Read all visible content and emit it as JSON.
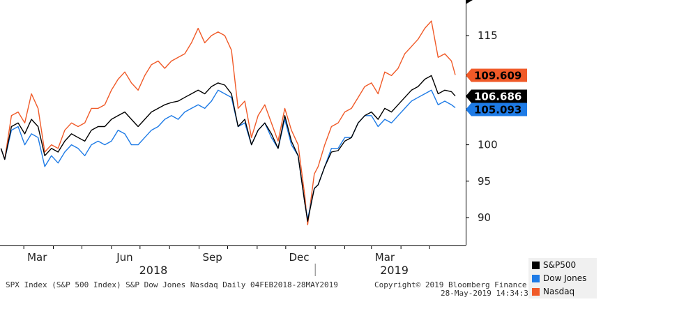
{
  "chart_data": {
    "type": "line",
    "y_ticks": [
      90,
      95,
      100,
      115
    ],
    "ylim": [
      86,
      120
    ],
    "x_month_labels": [
      "Mar",
      "Jun",
      "Sep",
      "Dec",
      "Mar"
    ],
    "year_labels": [
      "2018",
      "2019"
    ],
    "x_range": [
      "2018-02-04",
      "2019-05-28"
    ],
    "grid": false,
    "legend_placement": "bottom-right",
    "series": [
      {
        "name": "S&P500",
        "color": "#000000",
        "last_value_label": "106.686",
        "values": [
          [
            "2018-02-05",
            99.5
          ],
          [
            "2018-02-09",
            98.0
          ],
          [
            "2018-02-16",
            102.5
          ],
          [
            "2018-02-23",
            103.0
          ],
          [
            "2018-03-02",
            101.5
          ],
          [
            "2018-03-09",
            103.5
          ],
          [
            "2018-03-16",
            102.5
          ],
          [
            "2018-03-23",
            98.5
          ],
          [
            "2018-03-30",
            99.5
          ],
          [
            "2018-04-06",
            99.0
          ],
          [
            "2018-04-13",
            100.5
          ],
          [
            "2018-04-20",
            101.5
          ],
          [
            "2018-04-27",
            101.0
          ],
          [
            "2018-05-04",
            100.5
          ],
          [
            "2018-05-11",
            102.0
          ],
          [
            "2018-05-18",
            102.5
          ],
          [
            "2018-05-25",
            102.5
          ],
          [
            "2018-06-01",
            103.5
          ],
          [
            "2018-06-08",
            104.0
          ],
          [
            "2018-06-15",
            104.5
          ],
          [
            "2018-06-22",
            103.5
          ],
          [
            "2018-06-29",
            102.5
          ],
          [
            "2018-07-06",
            103.5
          ],
          [
            "2018-07-13",
            104.5
          ],
          [
            "2018-07-20",
            105.0
          ],
          [
            "2018-07-27",
            105.5
          ],
          [
            "2018-08-03",
            105.8
          ],
          [
            "2018-08-10",
            106.0
          ],
          [
            "2018-08-17",
            106.5
          ],
          [
            "2018-08-24",
            107.0
          ],
          [
            "2018-08-31",
            107.5
          ],
          [
            "2018-09-07",
            107.0
          ],
          [
            "2018-09-14",
            108.0
          ],
          [
            "2018-09-21",
            108.5
          ],
          [
            "2018-09-28",
            108.2
          ],
          [
            "2018-10-05",
            107.0
          ],
          [
            "2018-10-12",
            102.5
          ],
          [
            "2018-10-19",
            103.5
          ],
          [
            "2018-10-26",
            100.0
          ],
          [
            "2018-11-02",
            102.0
          ],
          [
            "2018-11-09",
            103.0
          ],
          [
            "2018-11-16",
            101.5
          ],
          [
            "2018-11-23",
            99.5
          ],
          [
            "2018-11-30",
            104.0
          ],
          [
            "2018-12-07",
            100.5
          ],
          [
            "2018-12-14",
            98.5
          ],
          [
            "2018-12-21",
            92.0
          ],
          [
            "2018-12-24",
            89.5
          ],
          [
            "2018-12-31",
            94.0
          ],
          [
            "2019-01-04",
            94.5
          ],
          [
            "2019-01-11",
            97.0
          ],
          [
            "2019-01-18",
            99.0
          ],
          [
            "2019-01-25",
            99.2
          ],
          [
            "2019-02-01",
            100.5
          ],
          [
            "2019-02-08",
            101.0
          ],
          [
            "2019-02-15",
            103.0
          ],
          [
            "2019-02-22",
            104.0
          ],
          [
            "2019-03-01",
            104.5
          ],
          [
            "2019-03-08",
            103.5
          ],
          [
            "2019-03-15",
            105.0
          ],
          [
            "2019-03-22",
            104.5
          ],
          [
            "2019-03-29",
            105.5
          ],
          [
            "2019-04-05",
            106.5
          ],
          [
            "2019-04-12",
            107.5
          ],
          [
            "2019-04-19",
            108.0
          ],
          [
            "2019-04-26",
            109.0
          ],
          [
            "2019-05-03",
            109.5
          ],
          [
            "2019-05-10",
            107.0
          ],
          [
            "2019-05-17",
            107.5
          ],
          [
            "2019-05-24",
            107.3
          ],
          [
            "2019-05-28",
            106.7
          ]
        ]
      },
      {
        "name": "Dow Jones",
        "color": "#1e7be6",
        "last_value_label": "105.093",
        "values": [
          [
            "2018-02-05",
            99.5
          ],
          [
            "2018-02-09",
            98.0
          ],
          [
            "2018-02-16",
            102.0
          ],
          [
            "2018-02-23",
            102.5
          ],
          [
            "2018-03-02",
            100.0
          ],
          [
            "2018-03-09",
            101.5
          ],
          [
            "2018-03-16",
            101.0
          ],
          [
            "2018-03-23",
            97.0
          ],
          [
            "2018-03-30",
            98.5
          ],
          [
            "2018-04-06",
            97.5
          ],
          [
            "2018-04-13",
            99.0
          ],
          [
            "2018-04-20",
            100.0
          ],
          [
            "2018-04-27",
            99.5
          ],
          [
            "2018-05-04",
            98.5
          ],
          [
            "2018-05-11",
            100.0
          ],
          [
            "2018-05-18",
            100.5
          ],
          [
            "2018-05-25",
            100.0
          ],
          [
            "2018-06-01",
            100.5
          ],
          [
            "2018-06-08",
            102.0
          ],
          [
            "2018-06-15",
            101.5
          ],
          [
            "2018-06-22",
            100.0
          ],
          [
            "2018-06-29",
            100.0
          ],
          [
            "2018-07-06",
            101.0
          ],
          [
            "2018-07-13",
            102.0
          ],
          [
            "2018-07-20",
            102.5
          ],
          [
            "2018-07-27",
            103.5
          ],
          [
            "2018-08-03",
            104.0
          ],
          [
            "2018-08-10",
            103.5
          ],
          [
            "2018-08-17",
            104.5
          ],
          [
            "2018-08-24",
            105.0
          ],
          [
            "2018-08-31",
            105.5
          ],
          [
            "2018-09-07",
            105.0
          ],
          [
            "2018-09-14",
            106.0
          ],
          [
            "2018-09-21",
            107.5
          ],
          [
            "2018-09-28",
            107.0
          ],
          [
            "2018-10-05",
            106.5
          ],
          [
            "2018-10-12",
            102.5
          ],
          [
            "2018-10-19",
            103.0
          ],
          [
            "2018-10-26",
            100.0
          ],
          [
            "2018-11-02",
            102.0
          ],
          [
            "2018-11-09",
            103.0
          ],
          [
            "2018-11-16",
            101.0
          ],
          [
            "2018-11-23",
            99.5
          ],
          [
            "2018-11-30",
            103.5
          ],
          [
            "2018-12-07",
            100.0
          ],
          [
            "2018-12-14",
            98.5
          ],
          [
            "2018-12-21",
            92.0
          ],
          [
            "2018-12-24",
            89.8
          ],
          [
            "2018-12-31",
            94.0
          ],
          [
            "2019-01-04",
            94.5
          ],
          [
            "2019-01-11",
            97.0
          ],
          [
            "2019-01-18",
            99.5
          ],
          [
            "2019-01-25",
            99.5
          ],
          [
            "2019-02-01",
            101.0
          ],
          [
            "2019-02-08",
            101.0
          ],
          [
            "2019-02-15",
            103.0
          ],
          [
            "2019-02-22",
            104.0
          ],
          [
            "2019-03-01",
            104.0
          ],
          [
            "2019-03-08",
            102.5
          ],
          [
            "2019-03-15",
            103.5
          ],
          [
            "2019-03-22",
            103.0
          ],
          [
            "2019-03-29",
            104.0
          ],
          [
            "2019-04-05",
            105.0
          ],
          [
            "2019-04-12",
            106.0
          ],
          [
            "2019-04-19",
            106.5
          ],
          [
            "2019-04-26",
            107.0
          ],
          [
            "2019-05-03",
            107.5
          ],
          [
            "2019-05-10",
            105.5
          ],
          [
            "2019-05-17",
            106.0
          ],
          [
            "2019-05-24",
            105.5
          ],
          [
            "2019-05-28",
            105.1
          ]
        ]
      },
      {
        "name": "Nasdaq",
        "color": "#f05a28",
        "last_value_label": "109.609",
        "values": [
          [
            "2018-02-05",
            99.5
          ],
          [
            "2018-02-09",
            98.0
          ],
          [
            "2018-02-16",
            104.0
          ],
          [
            "2018-02-23",
            104.5
          ],
          [
            "2018-03-02",
            103.0
          ],
          [
            "2018-03-09",
            107.0
          ],
          [
            "2018-03-16",
            105.0
          ],
          [
            "2018-03-23",
            99.0
          ],
          [
            "2018-03-30",
            100.0
          ],
          [
            "2018-04-06",
            99.5
          ],
          [
            "2018-04-13",
            102.0
          ],
          [
            "2018-04-20",
            103.0
          ],
          [
            "2018-04-27",
            102.5
          ],
          [
            "2018-05-04",
            103.0
          ],
          [
            "2018-05-11",
            105.0
          ],
          [
            "2018-05-18",
            105.0
          ],
          [
            "2018-05-25",
            105.5
          ],
          [
            "2018-06-01",
            107.5
          ],
          [
            "2018-06-08",
            109.0
          ],
          [
            "2018-06-15",
            110.0
          ],
          [
            "2018-06-22",
            108.5
          ],
          [
            "2018-06-29",
            107.5
          ],
          [
            "2018-07-06",
            109.5
          ],
          [
            "2018-07-13",
            111.0
          ],
          [
            "2018-07-20",
            111.5
          ],
          [
            "2018-07-27",
            110.5
          ],
          [
            "2018-08-03",
            111.5
          ],
          [
            "2018-08-10",
            112.0
          ],
          [
            "2018-08-17",
            112.5
          ],
          [
            "2018-08-24",
            114.0
          ],
          [
            "2018-08-31",
            116.0
          ],
          [
            "2018-09-07",
            114.0
          ],
          [
            "2018-09-14",
            115.0
          ],
          [
            "2018-09-21",
            115.5
          ],
          [
            "2018-09-28",
            115.0
          ],
          [
            "2018-10-05",
            113.0
          ],
          [
            "2018-10-12",
            105.0
          ],
          [
            "2018-10-19",
            106.0
          ],
          [
            "2018-10-26",
            101.0
          ],
          [
            "2018-11-02",
            104.0
          ],
          [
            "2018-11-09",
            105.5
          ],
          [
            "2018-11-16",
            103.0
          ],
          [
            "2018-11-23",
            100.5
          ],
          [
            "2018-11-30",
            105.0
          ],
          [
            "2018-12-07",
            102.0
          ],
          [
            "2018-12-14",
            100.0
          ],
          [
            "2018-12-21",
            93.0
          ],
          [
            "2018-12-24",
            89.0
          ],
          [
            "2018-12-31",
            96.0
          ],
          [
            "2019-01-04",
            97.0
          ],
          [
            "2019-01-11",
            100.0
          ],
          [
            "2019-01-18",
            102.5
          ],
          [
            "2019-01-25",
            103.0
          ],
          [
            "2019-02-01",
            104.5
          ],
          [
            "2019-02-08",
            105.0
          ],
          [
            "2019-02-15",
            106.5
          ],
          [
            "2019-02-22",
            108.0
          ],
          [
            "2019-03-01",
            108.5
          ],
          [
            "2019-03-08",
            107.0
          ],
          [
            "2019-03-15",
            110.0
          ],
          [
            "2019-03-22",
            109.5
          ],
          [
            "2019-03-29",
            110.5
          ],
          [
            "2019-04-05",
            112.5
          ],
          [
            "2019-04-12",
            113.5
          ],
          [
            "2019-04-19",
            114.5
          ],
          [
            "2019-04-26",
            116.0
          ],
          [
            "2019-05-03",
            117.0
          ],
          [
            "2019-05-10",
            112.0
          ],
          [
            "2019-05-17",
            112.5
          ],
          [
            "2019-05-24",
            111.5
          ],
          [
            "2019-05-28",
            109.6
          ]
        ]
      }
    ]
  },
  "footer": {
    "left": "SPX Index (S&P 500 Index) S&P Dow Jones Nasdaq  Daily 04FEB2018-28MAY2019",
    "copyright": "Copyright© 2019 Bloomberg Finance L.P.",
    "timestamp": "28-May-2019 14:34:35"
  }
}
